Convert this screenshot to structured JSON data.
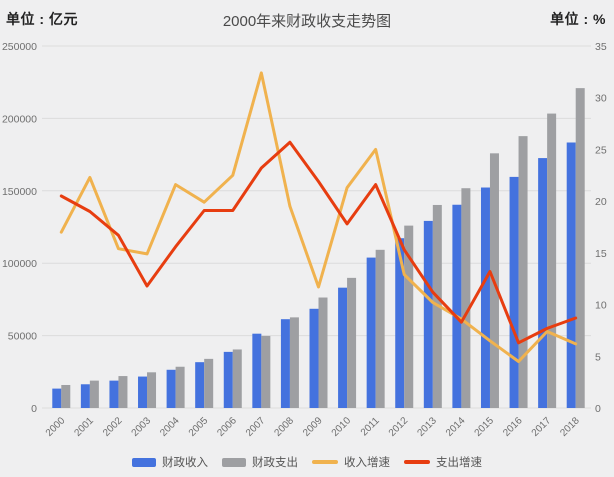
{
  "header": {
    "left_unit": "单位 : 亿元",
    "title": "2000年来财政收支走势图",
    "right_unit": "单位 : %"
  },
  "colors": {
    "background": "#efeff0",
    "gridline": "#dcdcdc",
    "axis_text": "#6f6f6f",
    "title_text": "#4a4a4a",
    "revenue_bar": "#4472de",
    "expenditure_bar": "#9e9fa2",
    "revenue_growth_line": "#f0b24e",
    "expenditure_growth_line": "#e73d10"
  },
  "chart_data": {
    "type": "bar",
    "subtype": "bar+line combo, dual axis",
    "title": "2000年来财政收支走势图",
    "categories": [
      "2000",
      "2001",
      "2002",
      "2003",
      "2004",
      "2005",
      "2006",
      "2007",
      "2008",
      "2009",
      "2010",
      "2011",
      "2012",
      "2013",
      "2014",
      "2015",
      "2016",
      "2017",
      "2018"
    ],
    "left_axis": {
      "unit": "亿元",
      "min": 0,
      "max": 250000,
      "tick_step": 50000,
      "ticks": [
        0,
        50000,
        100000,
        150000,
        200000,
        250000
      ]
    },
    "right_axis": {
      "unit": "%",
      "min": 0,
      "max": 35,
      "tick_step": 5,
      "ticks": [
        0,
        5,
        10,
        15,
        20,
        25,
        30,
        35
      ]
    },
    "series": [
      {
        "name": "财政收入",
        "type": "bar",
        "axis": "left",
        "color": "#4472de",
        "values": [
          13395,
          16386,
          18904,
          21715,
          26396,
          31649,
          38760,
          51322,
          61330,
          68518,
          83102,
          103874,
          117254,
          129210,
          140370,
          152269,
          159605,
          172593,
          183360
        ]
      },
      {
        "name": "财政支出",
        "type": "bar",
        "axis": "left",
        "color": "#9e9fa2",
        "values": [
          15887,
          18903,
          22053,
          24650,
          28487,
          33930,
          40423,
          49781,
          62593,
          76300,
          89874,
          109248,
          125953,
          140212,
          151786,
          175878,
          187755,
          203330,
          220906
        ]
      },
      {
        "name": "收入增速",
        "type": "line",
        "axis": "right",
        "color": "#f0b24e",
        "values": [
          17.0,
          22.3,
          15.4,
          14.9,
          21.6,
          19.9,
          22.5,
          32.4,
          19.5,
          11.7,
          21.3,
          25.0,
          12.9,
          10.2,
          8.6,
          6.5,
          4.5,
          7.4,
          6.2
        ]
      },
      {
        "name": "支出增速",
        "type": "line",
        "axis": "right",
        "color": "#e73d10",
        "values": [
          20.5,
          19.0,
          16.7,
          11.8,
          15.6,
          19.1,
          19.1,
          23.2,
          25.7,
          21.9,
          17.8,
          21.6,
          15.3,
          11.2,
          8.3,
          13.2,
          6.3,
          7.7,
          8.7
        ]
      }
    ],
    "legend_position": "bottom",
    "grid": "horizontal gridlines at left-axis ticks only",
    "x_tick_rotation": -45
  }
}
